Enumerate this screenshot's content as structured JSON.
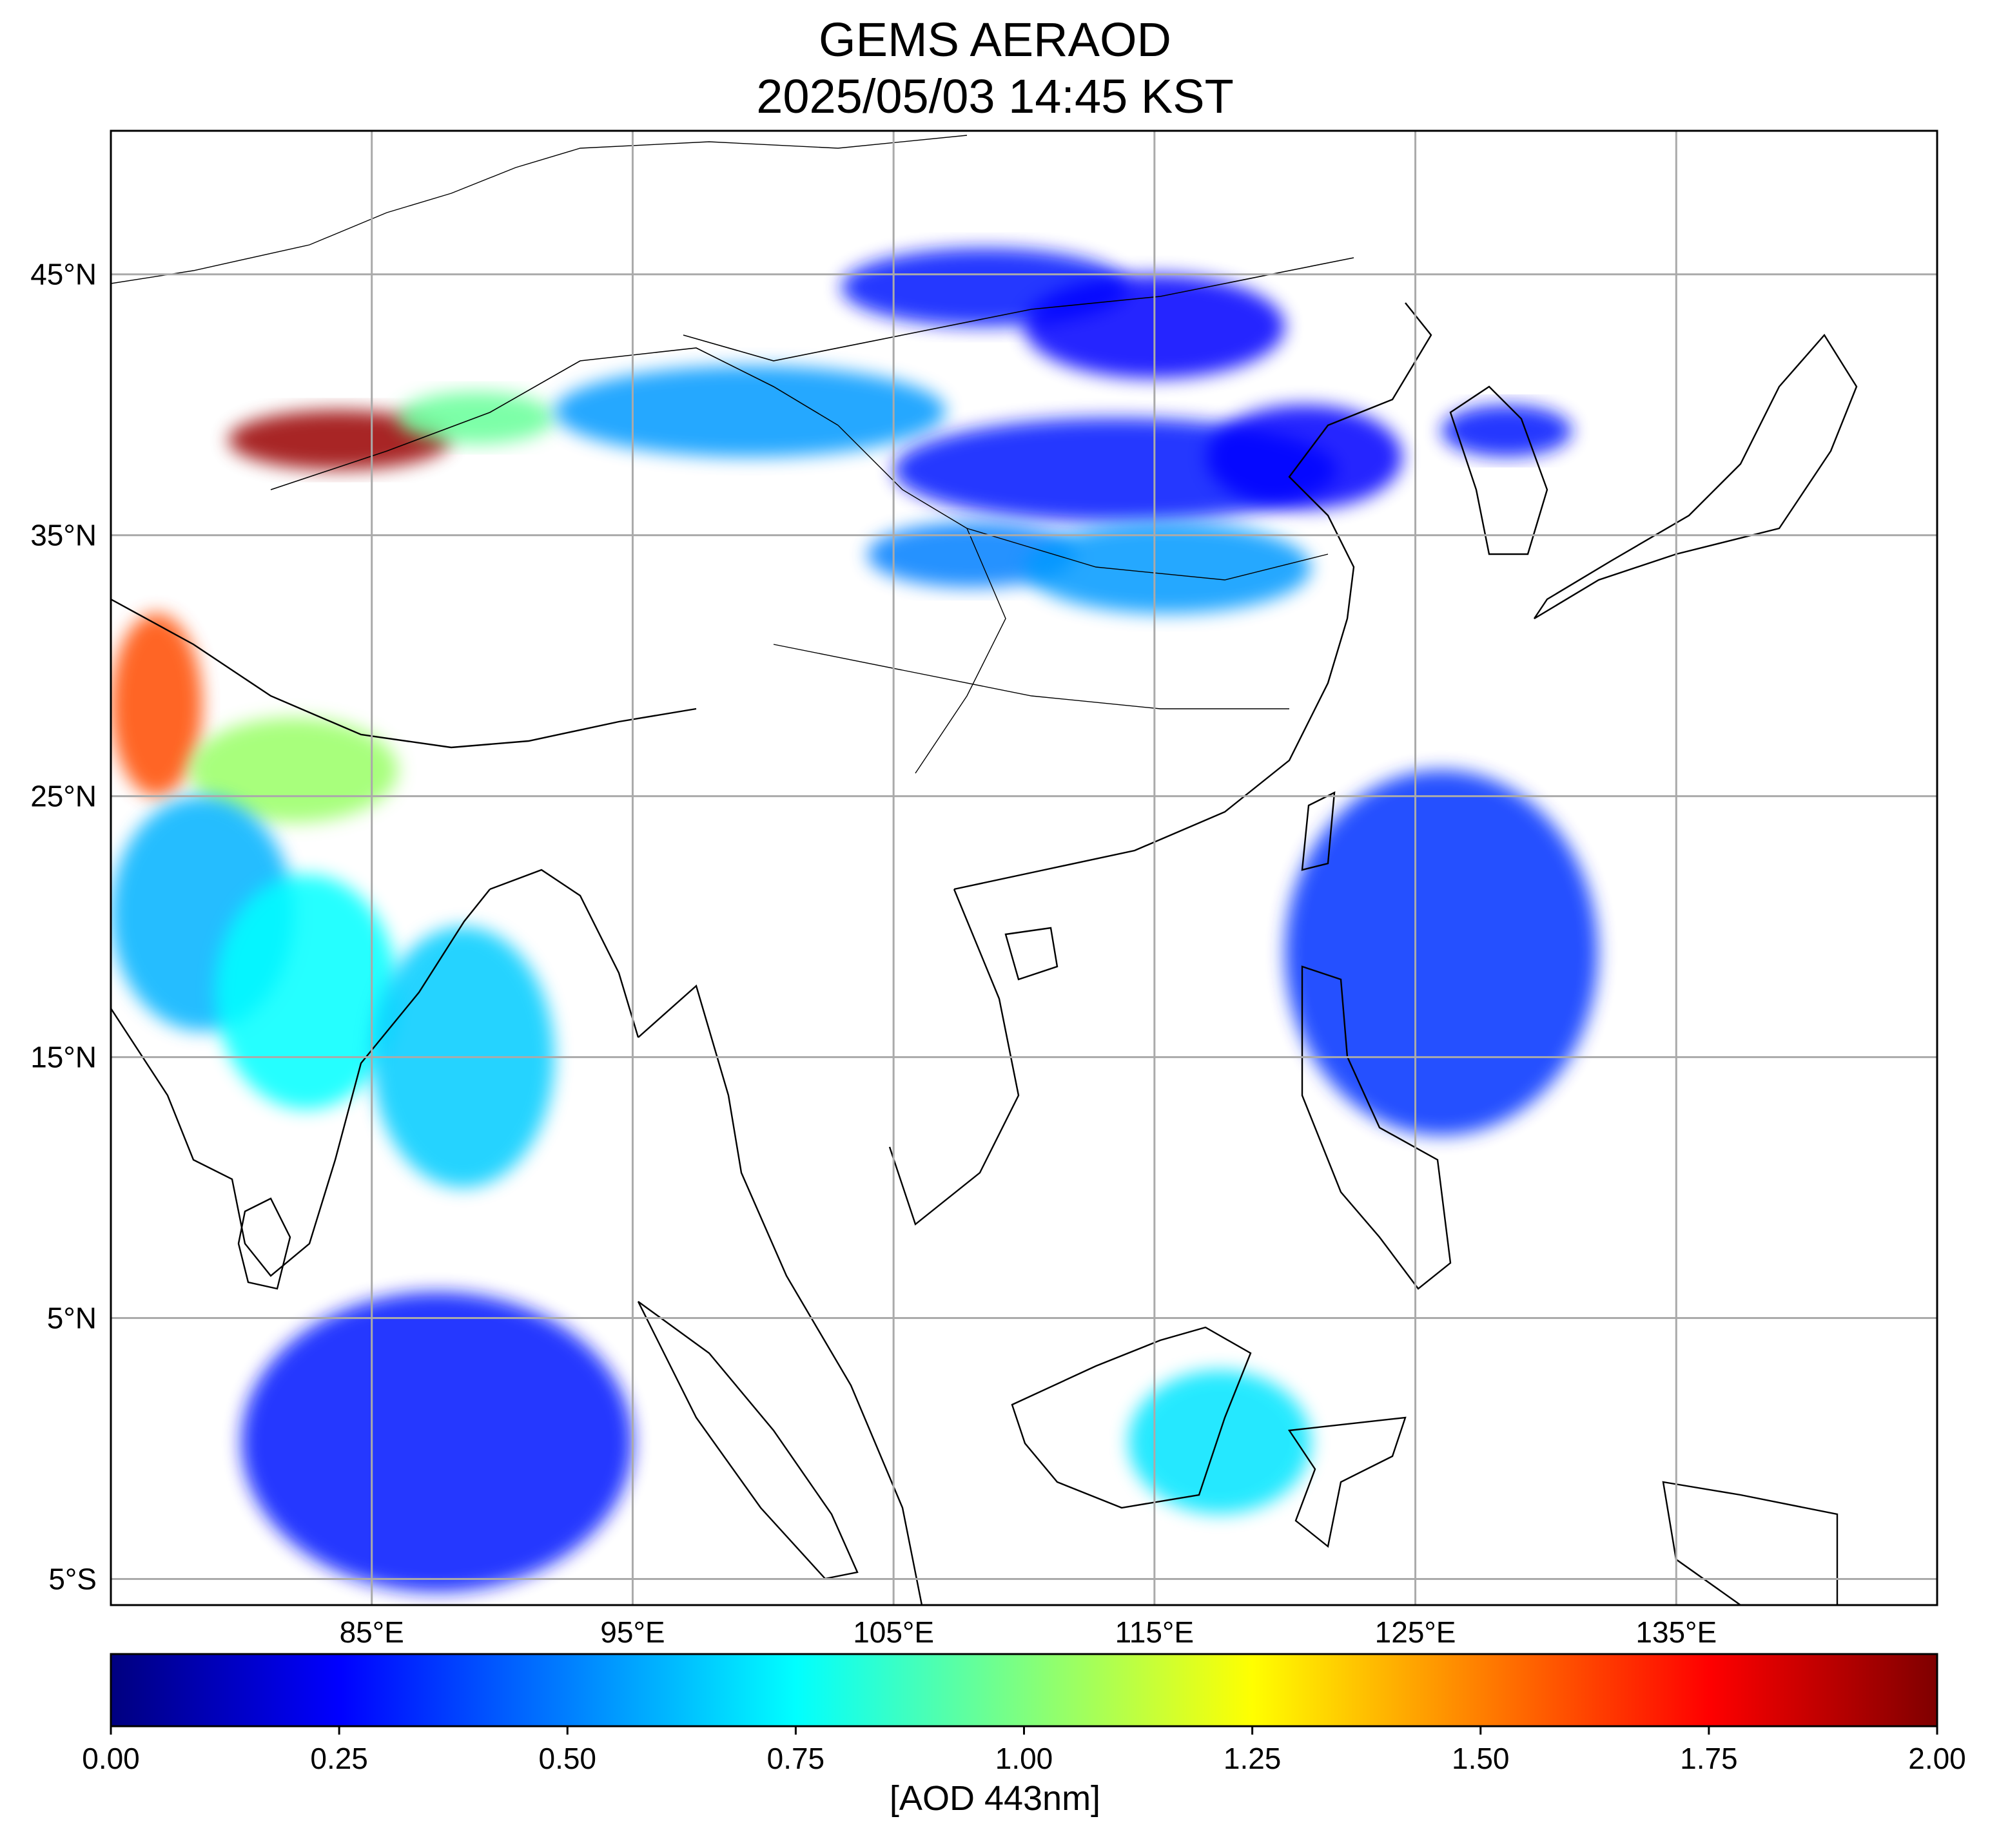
{
  "title": "GEMS AERAOD",
  "subtitle": "2025/05/03 14:45 KST",
  "map": {
    "lon_range": [
      75,
      145
    ],
    "lat_range": [
      -6.0,
      50.5
    ],
    "lat_ticks": [
      {
        "value": 45,
        "label": "45°N"
      },
      {
        "value": 35,
        "label": "35°N"
      },
      {
        "value": 25,
        "label": "25°N"
      },
      {
        "value": 15,
        "label": "15°N"
      },
      {
        "value": 5,
        "label": "5°N"
      },
      {
        "value": -5,
        "label": "5°S"
      }
    ],
    "lon_ticks": [
      {
        "value": 85,
        "label": "85°E"
      },
      {
        "value": 95,
        "label": "95°E"
      },
      {
        "value": 105,
        "label": "105°E"
      },
      {
        "value": 115,
        "label": "115°E"
      },
      {
        "value": 125,
        "label": "125°E"
      },
      {
        "value": 135,
        "label": "135°E"
      }
    ],
    "grid": true,
    "colormap": "jet"
  },
  "colorbar": {
    "min": 0.0,
    "max": 2.0,
    "ticks": [
      "0.00",
      "0.25",
      "0.50",
      "0.75",
      "1.00",
      "1.25",
      "1.50",
      "1.75",
      "2.00"
    ],
    "label": "[AOD 443nm]",
    "colors": [
      "#00007f",
      "#0000ff",
      "#007fff",
      "#00ffff",
      "#7fff7f",
      "#ffff00",
      "#ff7f00",
      "#ff0000",
      "#7f0000"
    ]
  },
  "chart_data": {
    "type": "heatmap",
    "title": "GEMS AERAOD",
    "subtitle": "2025/05/03 14:45 KST",
    "xlabel": "",
    "ylabel": "",
    "colorbar_label": "[AOD 443nm]",
    "value_range": [
      0,
      2
    ],
    "regions": [
      {
        "lon": [
          79.5,
          88.0
        ],
        "lat": [
          37.5,
          39.8
        ],
        "aod": 1.95
      },
      {
        "lon": [
          86.0,
          92.0
        ],
        "lat": [
          38.5,
          40.5
        ],
        "aod": 0.95
      },
      {
        "lon": [
          92.0,
          107.0
        ],
        "lat": [
          38.0,
          41.5
        ],
        "aod": 0.55
      },
      {
        "lon": [
          105.0,
          122.0
        ],
        "lat": [
          35.5,
          39.5
        ],
        "aod": 0.3
      },
      {
        "lon": [
          117.0,
          124.5
        ],
        "lat": [
          36.0,
          40.0
        ],
        "aod": 0.25
      },
      {
        "lon": [
          104.0,
          112.0
        ],
        "lat": [
          33.0,
          35.5
        ],
        "aod": 0.5
      },
      {
        "lon": [
          110.0,
          121.0
        ],
        "lat": [
          32.0,
          35.5
        ],
        "aod": 0.55
      },
      {
        "lon": [
          103.0,
          114.0
        ],
        "lat": [
          43.0,
          46.0
        ],
        "aod": 0.3
      },
      {
        "lon": [
          110.0,
          120.0
        ],
        "lat": [
          41.0,
          45.0
        ],
        "aod": 0.25
      },
      {
        "lon": [
          75.0,
          78.5
        ],
        "lat": [
          25.0,
          32.0
        ],
        "aod": 1.6
      },
      {
        "lon": [
          78.0,
          86.0
        ],
        "lat": [
          24.0,
          28.0
        ],
        "aod": 1.05
      },
      {
        "lon": [
          75.0,
          82.0
        ],
        "lat": [
          16.0,
          25.0
        ],
        "aod": 0.6
      },
      {
        "lon": [
          79.0,
          86.0
        ],
        "lat": [
          13.0,
          22.0
        ],
        "aod": 0.75
      },
      {
        "lon": [
          85.0,
          92.0
        ],
        "lat": [
          10.0,
          20.0
        ],
        "aod": 0.65
      },
      {
        "lon": [
          80.0,
          95.0
        ],
        "lat": [
          -5.5,
          6.0
        ],
        "aod": 0.3
      },
      {
        "lon": [
          114.0,
          121.0
        ],
        "lat": [
          -2.5,
          3.0
        ],
        "aod": 0.7
      },
      {
        "lon": [
          120.0,
          132.0
        ],
        "lat": [
          12.0,
          26.0
        ],
        "aod": 0.35
      },
      {
        "lon": [
          126.0,
          131.0
        ],
        "lat": [
          38.0,
          40.0
        ],
        "aod": 0.3
      }
    ]
  }
}
